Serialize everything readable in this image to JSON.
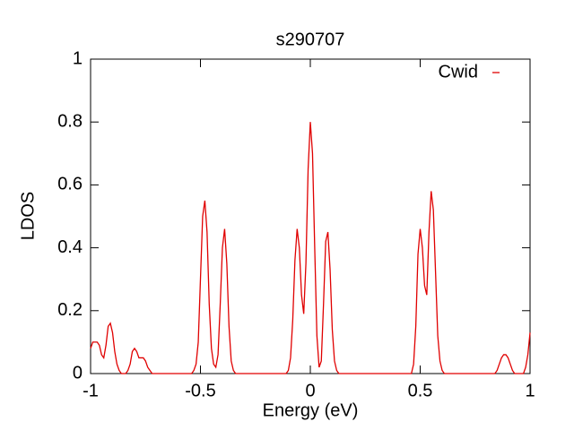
{
  "chart_data": {
    "type": "line",
    "title": "s290707",
    "x_label": "Energy (eV)",
    "y_label": "LDOS",
    "xlim": [
      -1,
      1
    ],
    "ylim": [
      0,
      1
    ],
    "xticks": [
      -1,
      -0.5,
      0,
      0.5,
      1
    ],
    "yticks": [
      0,
      0.2,
      0.4,
      0.6,
      0.8,
      1
    ],
    "grid": false,
    "legend": "top-right",
    "x": [
      -1,
      -0.99,
      -0.98,
      -0.97,
      -0.96,
      -0.95,
      -0.94,
      -0.93,
      -0.92,
      -0.91,
      -0.9,
      -0.89,
      -0.88,
      -0.87,
      -0.86,
      -0.85,
      -0.84,
      -0.83,
      -0.82,
      -0.81,
      -0.8,
      -0.79,
      -0.78,
      -0.77,
      -0.76,
      -0.75,
      -0.74,
      -0.73,
      -0.72,
      -0.71,
      -0.7,
      -0.69,
      -0.68,
      -0.67,
      -0.66,
      -0.65,
      -0.64,
      -0.63,
      -0.62,
      -0.61,
      -0.6,
      -0.59,
      -0.58,
      -0.57,
      -0.56,
      -0.55,
      -0.54,
      -0.53,
      -0.52,
      -0.51,
      -0.5,
      -0.49,
      -0.48,
      -0.47,
      -0.46,
      -0.45,
      -0.44,
      -0.43,
      -0.42,
      -0.41,
      -0.4,
      -0.39,
      -0.38,
      -0.37,
      -0.36,
      -0.35,
      -0.34,
      -0.33,
      -0.32,
      -0.31,
      -0.3,
      -0.29,
      -0.28,
      -0.27,
      -0.26,
      -0.25,
      -0.24,
      -0.23,
      -0.22,
      -0.21,
      -0.2,
      -0.19,
      -0.18,
      -0.17,
      -0.16,
      -0.15,
      -0.14,
      -0.13,
      -0.12,
      -0.11,
      -0.1,
      -0.09,
      -0.08,
      -0.07,
      -0.06,
      -0.05,
      -0.04,
      -0.03,
      -0.02,
      -0.01,
      0,
      0.01,
      0.02,
      0.03,
      0.04,
      0.05,
      0.06,
      0.07,
      0.08,
      0.09,
      0.1,
      0.11,
      0.12,
      0.13,
      0.14,
      0.15,
      0.16,
      0.17,
      0.18,
      0.19,
      0.2,
      0.21,
      0.22,
      0.23,
      0.24,
      0.25,
      0.26,
      0.27,
      0.28,
      0.29,
      0.3,
      0.31,
      0.32,
      0.33,
      0.34,
      0.35,
      0.36,
      0.37,
      0.38,
      0.39,
      0.4,
      0.41,
      0.42,
      0.43,
      0.44,
      0.45,
      0.46,
      0.47,
      0.48,
      0.49,
      0.5,
      0.51,
      0.52,
      0.53,
      0.54,
      0.55,
      0.56,
      0.57,
      0.58,
      0.59,
      0.6,
      0.61,
      0.62,
      0.63,
      0.64,
      0.65,
      0.66,
      0.67,
      0.68,
      0.69,
      0.7,
      0.71,
      0.72,
      0.73,
      0.74,
      0.75,
      0.76,
      0.77,
      0.78,
      0.79,
      0.8,
      0.81,
      0.82,
      0.83,
      0.84,
      0.85,
      0.86,
      0.87,
      0.88,
      0.89,
      0.9,
      0.91,
      0.92,
      0.93,
      0.94,
      0.95,
      0.96,
      0.97,
      0.98,
      0.99,
      1
    ],
    "series": [
      {
        "name": "Cwid",
        "color": "#e00000",
        "values": [
          0.08,
          0.1,
          0.1,
          0.1,
          0.09,
          0.06,
          0.05,
          0.09,
          0.15,
          0.16,
          0.13,
          0.07,
          0.03,
          0.01,
          0,
          0,
          0,
          0.01,
          0.03,
          0.07,
          0.08,
          0.07,
          0.05,
          0.05,
          0.05,
          0.04,
          0.02,
          0.01,
          0,
          0,
          0,
          0,
          0,
          0,
          0,
          0,
          0,
          0,
          0,
          0,
          0,
          0,
          0,
          0,
          0,
          0,
          0,
          0.01,
          0.03,
          0.1,
          0.3,
          0.5,
          0.55,
          0.45,
          0.22,
          0.08,
          0.03,
          0.02,
          0.06,
          0.22,
          0.4,
          0.46,
          0.35,
          0.15,
          0.04,
          0.01,
          0,
          0,
          0,
          0,
          0,
          0,
          0,
          0,
          0,
          0,
          0,
          0,
          0,
          0,
          0,
          0,
          0,
          0,
          0,
          0,
          0,
          0,
          0,
          0,
          0.01,
          0.05,
          0.17,
          0.36,
          0.46,
          0.4,
          0.25,
          0.19,
          0.35,
          0.65,
          0.8,
          0.7,
          0.4,
          0.12,
          0.02,
          0.04,
          0.22,
          0.42,
          0.45,
          0.33,
          0.14,
          0.04,
          0.01,
          0,
          0,
          0,
          0,
          0,
          0,
          0,
          0,
          0,
          0,
          0,
          0,
          0,
          0,
          0,
          0,
          0,
          0,
          0,
          0,
          0,
          0,
          0,
          0,
          0,
          0,
          0,
          0,
          0,
          0,
          0,
          0,
          0,
          0,
          0.03,
          0.15,
          0.38,
          0.46,
          0.4,
          0.28,
          0.25,
          0.45,
          0.58,
          0.52,
          0.32,
          0.12,
          0.04,
          0.01,
          0,
          0,
          0,
          0,
          0,
          0,
          0,
          0,
          0,
          0,
          0,
          0,
          0,
          0,
          0,
          0,
          0,
          0,
          0,
          0,
          0,
          0,
          0,
          0,
          0.01,
          0.03,
          0.05,
          0.06,
          0.06,
          0.05,
          0.03,
          0.01,
          0,
          0,
          0,
          0,
          0,
          0.02,
          0.06,
          0.13
        ]
      }
    ]
  }
}
